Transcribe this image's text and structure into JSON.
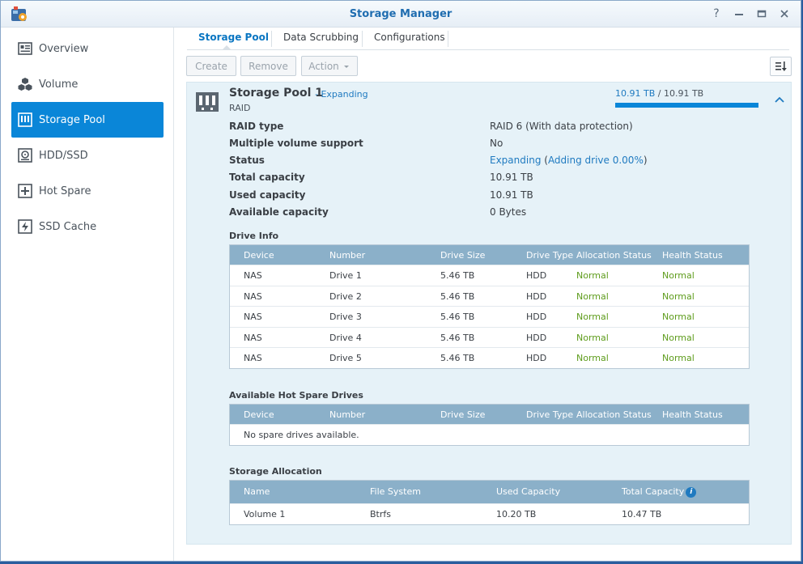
{
  "window": {
    "title": "Storage Manager"
  },
  "sidebar": {
    "items": [
      {
        "label": "Overview",
        "icon": "overview-icon"
      },
      {
        "label": "Volume",
        "icon": "volume-icon"
      },
      {
        "label": "Storage Pool",
        "icon": "storage-pool-icon",
        "active": true
      },
      {
        "label": "HDD/SSD",
        "icon": "hdd-icon"
      },
      {
        "label": "Hot Spare",
        "icon": "hot-spare-icon"
      },
      {
        "label": "SSD Cache",
        "icon": "ssd-cache-icon"
      }
    ]
  },
  "tabs": [
    "Storage Pool",
    "Data Scrubbing",
    "Configurations"
  ],
  "toolbar": {
    "create": "Create",
    "remove": "Remove",
    "action": "Action"
  },
  "pool": {
    "name": "Storage Pool 1",
    "status_tag": "- Expanding",
    "type": "RAID",
    "capacity": {
      "used": "10.91 TB",
      "sep": " / ",
      "total": "10.91 TB",
      "fill_fraction": 1.0
    },
    "properties": [
      {
        "label": "RAID type",
        "value": "RAID 6 (With data protection)"
      },
      {
        "label": "Multiple volume support",
        "value": "No"
      },
      {
        "label": "Status",
        "value_link": "Expanding",
        "value_paren_open": " (",
        "value_link2": "Adding drive 0.00%",
        "value_paren_close": ")"
      },
      {
        "label": "Total capacity",
        "value": "10.91 TB"
      },
      {
        "label": "Used capacity",
        "value": "10.91 TB"
      },
      {
        "label": "Available capacity",
        "value": "0 Bytes"
      }
    ]
  },
  "drive_info": {
    "title": "Drive Info",
    "columns": [
      "Device",
      "Number",
      "Drive Size",
      "Drive Type",
      "Allocation Status",
      "Health Status"
    ],
    "rows": [
      [
        "NAS",
        "Drive 1",
        "5.46 TB",
        "HDD",
        "Normal",
        "Normal"
      ],
      [
        "NAS",
        "Drive 2",
        "5.46 TB",
        "HDD",
        "Normal",
        "Normal"
      ],
      [
        "NAS",
        "Drive 3",
        "5.46 TB",
        "HDD",
        "Normal",
        "Normal"
      ],
      [
        "NAS",
        "Drive 4",
        "5.46 TB",
        "HDD",
        "Normal",
        "Normal"
      ],
      [
        "NAS",
        "Drive 5",
        "5.46 TB",
        "HDD",
        "Normal",
        "Normal"
      ]
    ]
  },
  "hot_spare": {
    "title": "Available Hot Spare Drives",
    "columns": [
      "Device",
      "Number",
      "Drive Size",
      "Drive Type",
      "Allocation Status",
      "Health Status"
    ],
    "empty_text": "No spare drives available."
  },
  "allocation": {
    "title": "Storage Allocation",
    "columns": [
      "Name",
      "File System",
      "Used Capacity",
      "Total Capacity"
    ],
    "rows": [
      [
        "Volume 1",
        "Btrfs",
        "10.20 TB",
        "10.47 TB"
      ]
    ]
  },
  "colors": {
    "accent": "#0a86d8",
    "ok": "#5e9c1c",
    "header": "#8bb0c9",
    "panel": "#e6f2f8"
  }
}
